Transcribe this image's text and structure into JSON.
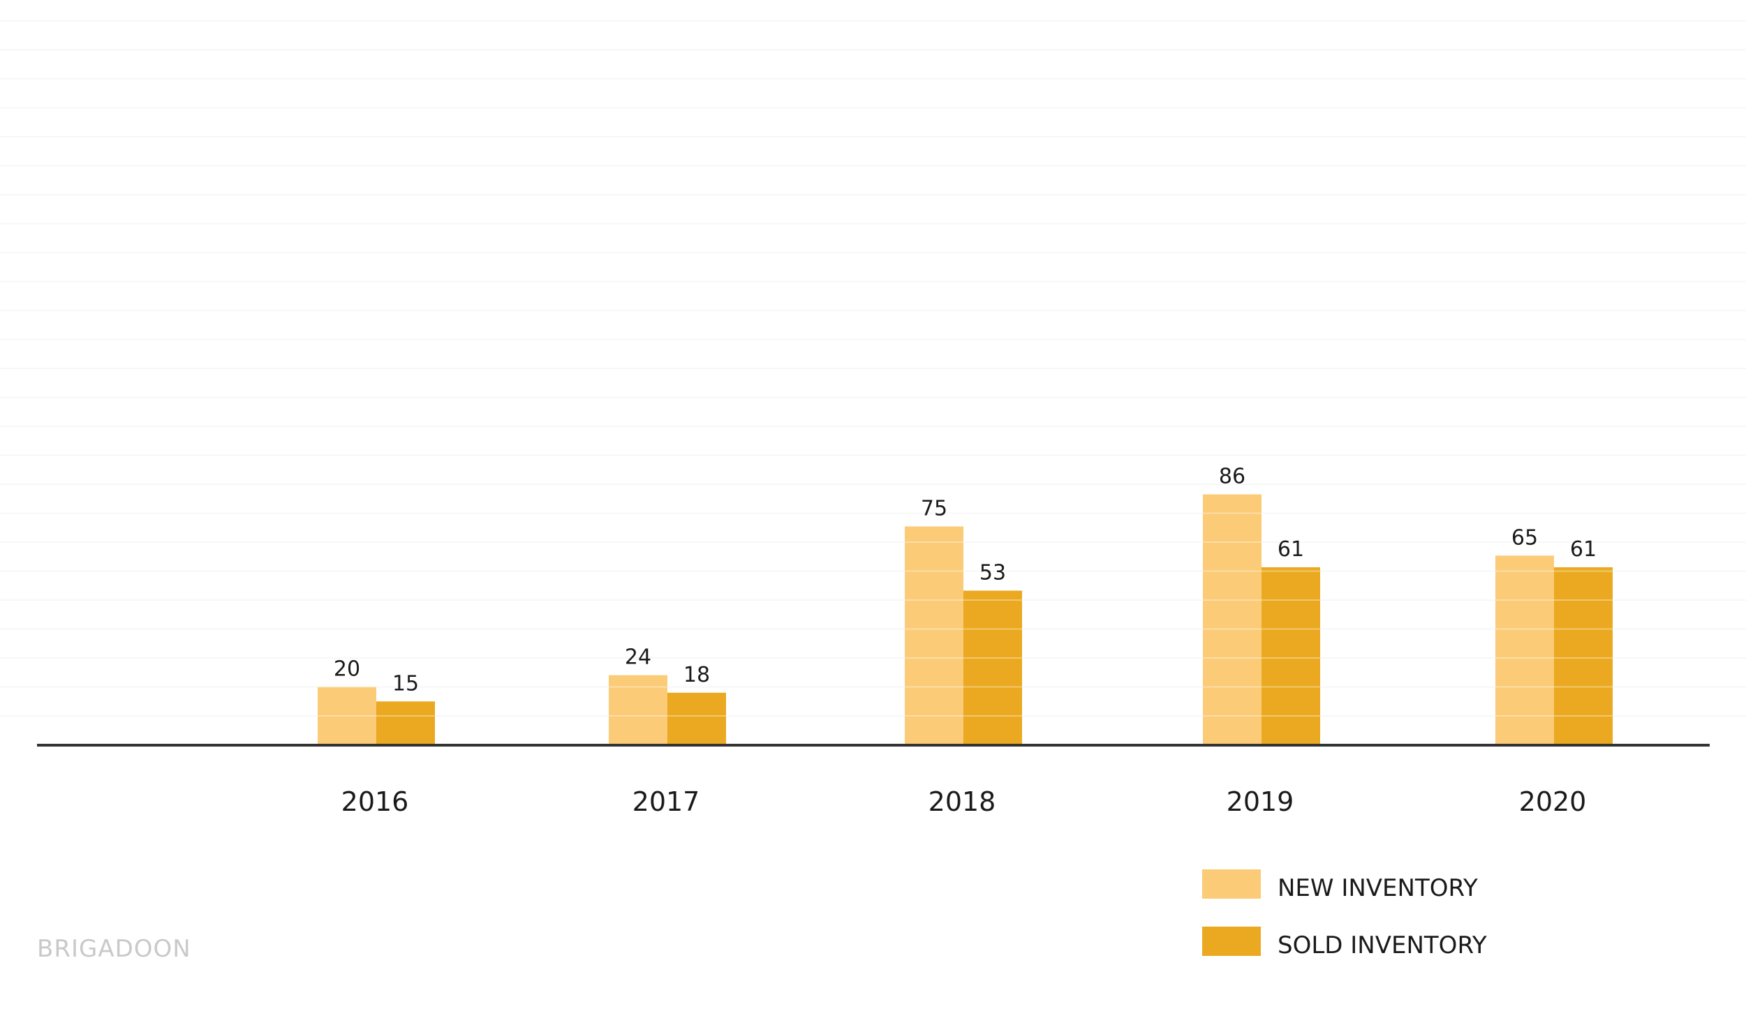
{
  "watermark": "BRIGADOON",
  "chart_data": {
    "type": "bar",
    "title": "",
    "xlabel": "",
    "ylabel": "",
    "categories": [
      "2016",
      "2017",
      "2018",
      "2019",
      "2020"
    ],
    "series": [
      {
        "name": "NEW INVENTORY",
        "values": [
          20,
          24,
          75,
          86,
          65
        ],
        "color": "#FBCB77"
      },
      {
        "name": "SOLD INVENTORY",
        "values": [
          15,
          18,
          53,
          61,
          61
        ],
        "color": "#EAA920"
      }
    ],
    "data_labels": true,
    "grid": true,
    "legend_position": "bottom-right",
    "axis_color": "#333333",
    "grid_color": "#f3f3f3"
  }
}
